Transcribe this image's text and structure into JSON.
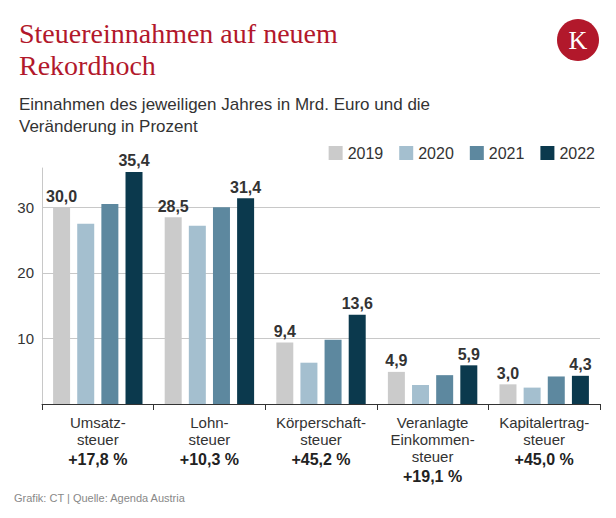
{
  "chart_data": {
    "type": "bar",
    "title": "Steuereinnahmen auf neuem\nRekordhoch",
    "subtitle": "Einnahmen des jeweiligen Jahres in Mrd. Euro und die\nVeränderung in Prozent",
    "logo": "K",
    "source": "Grafik: CT | Quelle: Agenda Austria",
    "categories": [
      "Umsatz-\nsteuer",
      "Lohn-\nsteuer",
      "Körperschaft-\nsteuer",
      "Veranlagte\nEinkommen-\nsteuer",
      "Kapitalertrag-\nsteuer"
    ],
    "annotations": [
      "+17,8 %",
      "+10,3 %",
      "+45,2 %",
      "+19,1 %",
      "+45,0 %"
    ],
    "series": [
      {
        "name": "2019",
        "color": "#cbcbcb",
        "values": [
          30.0,
          28.5,
          9.4,
          4.9,
          3.0
        ],
        "data_labels": true,
        "value_labels": [
          "30,0",
          "28,5",
          "9,4",
          "4,9",
          "3,0"
        ]
      },
      {
        "name": "2020",
        "color": "#a4bfcf",
        "values": [
          27.5,
          27.2,
          6.3,
          2.9,
          2.5
        ],
        "data_labels": false
      },
      {
        "name": "2021",
        "color": "#5d889f",
        "values": [
          30.5,
          30.0,
          9.8,
          4.4,
          4.2
        ],
        "data_labels": false
      },
      {
        "name": "2022",
        "color": "#0b394d",
        "values": [
          35.4,
          31.4,
          13.6,
          5.9,
          4.3
        ],
        "data_labels": true,
        "value_labels": [
          "35,4",
          "31,4",
          "13,6",
          "5,9",
          "4,3"
        ]
      }
    ],
    "ylim": [
      0,
      36
    ],
    "yticks": [
      10,
      20,
      30
    ],
    "grid": true,
    "legend": "top right"
  }
}
